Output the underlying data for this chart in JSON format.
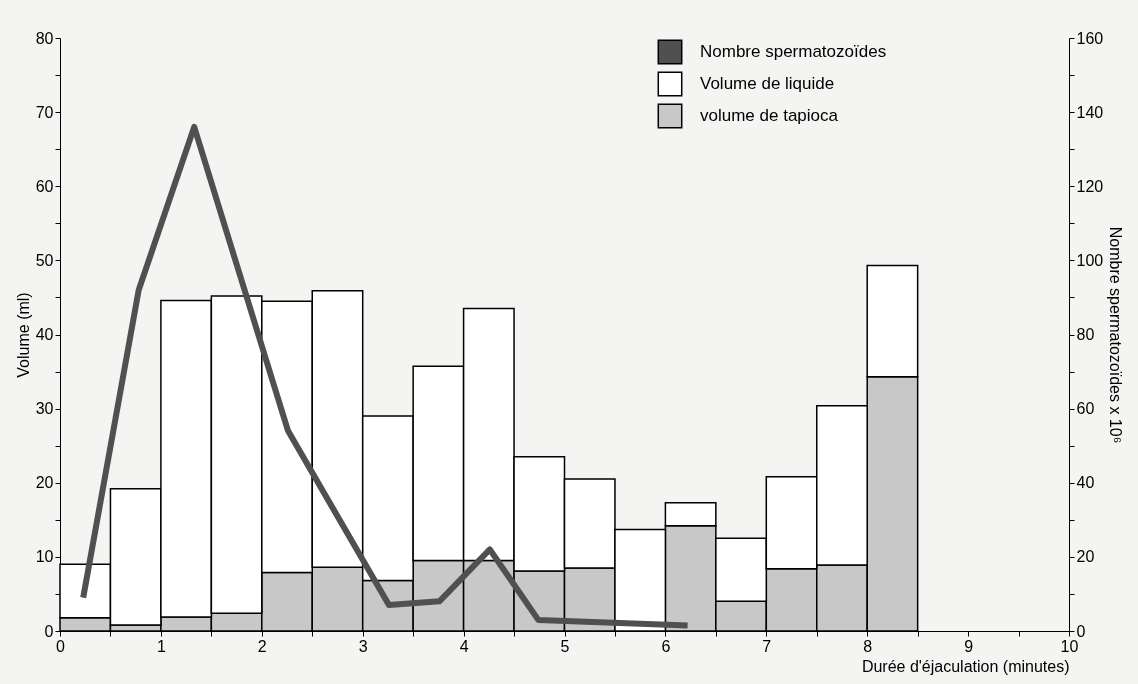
{
  "chart_data": {
    "type": "bar",
    "stacked": true,
    "x": [
      0.25,
      0.75,
      1.25,
      1.75,
      2.25,
      2.75,
      3.25,
      3.75,
      4.25,
      4.75,
      5.25,
      5.75,
      6.25,
      6.75,
      7.25,
      7.75,
      8.25
    ],
    "xlabel": "Durée d'éjaculation (minutes)",
    "ylabel": "Volume (ml)",
    "y2label": "Nombre spermatozoïdes x 10⁶",
    "series": [
      {
        "name": "volume de tapioca",
        "color": "#c8c8c8",
        "values": [
          1.8,
          0.8,
          1.9,
          2.4,
          7.9,
          8.6,
          6.8,
          9.5,
          9.5,
          8.1,
          8.5,
          0,
          14.2,
          4.0,
          8.4,
          8.9,
          34.3
        ]
      },
      {
        "name": "Volume de liquide",
        "color": "#ffffff",
        "values": [
          7.2,
          18.4,
          42.7,
          42.8,
          36.6,
          37.3,
          22.2,
          26.2,
          34.0,
          15.4,
          12.0,
          13.7,
          3.1,
          8.5,
          12.4,
          21.5,
          15.0
        ]
      },
      {
        "name": "Nombre spermatozoïdes",
        "type": "line",
        "axis": "y2",
        "color": "#505050",
        "x": [
          0.23,
          0.78,
          1.33,
          2.26,
          3.26,
          3.76,
          4.26,
          4.74,
          6.22
        ],
        "values": [
          9,
          92,
          136,
          54,
          7,
          8,
          22,
          3,
          1.5
        ]
      }
    ],
    "xlim": [
      0,
      10
    ],
    "xticks": [
      0,
      {
        "value": 0.5,
        "label": null
      },
      1,
      {
        "value": 1.5,
        "label": null
      },
      2,
      {
        "value": 2.5,
        "label": null
      },
      3,
      {
        "value": 3.5,
        "label": null
      },
      4,
      {
        "value": 4.5,
        "label": null
      },
      5,
      {
        "value": 5.5,
        "label": null
      },
      6,
      {
        "value": 6.5,
        "label": null
      },
      7,
      {
        "value": 7.5,
        "label": null
      },
      8,
      {
        "value": 8.5,
        "label": null
      },
      9,
      {
        "value": 9.5,
        "label": null
      },
      10
    ],
    "ylim": [
      0,
      80
    ],
    "yticks": [
      0,
      {
        "value": 5,
        "label": null
      },
      10,
      {
        "value": 15,
        "label": null
      },
      20,
      {
        "value": 25,
        "label": null
      },
      30,
      {
        "value": 35,
        "label": null
      },
      40,
      {
        "value": 45,
        "label": null
      },
      50,
      {
        "value": 55,
        "label": null
      },
      60,
      {
        "value": 65,
        "label": null
      },
      70,
      {
        "value": 75,
        "label": null
      },
      80
    ],
    "y2lim": [
      0,
      160
    ],
    "y2ticks": [
      0,
      {
        "value": 10,
        "label": null
      },
      20,
      {
        "value": 30,
        "label": null
      },
      40,
      {
        "value": 50,
        "label": null
      },
      60,
      {
        "value": 70,
        "label": null
      },
      80,
      {
        "value": 90,
        "label": null
      },
      100,
      {
        "value": 110,
        "label": null
      },
      120,
      {
        "value": 130,
        "label": null
      },
      140,
      {
        "value": 150,
        "label": null
      },
      160
    ],
    "legend": "top right",
    "grid": false
  }
}
